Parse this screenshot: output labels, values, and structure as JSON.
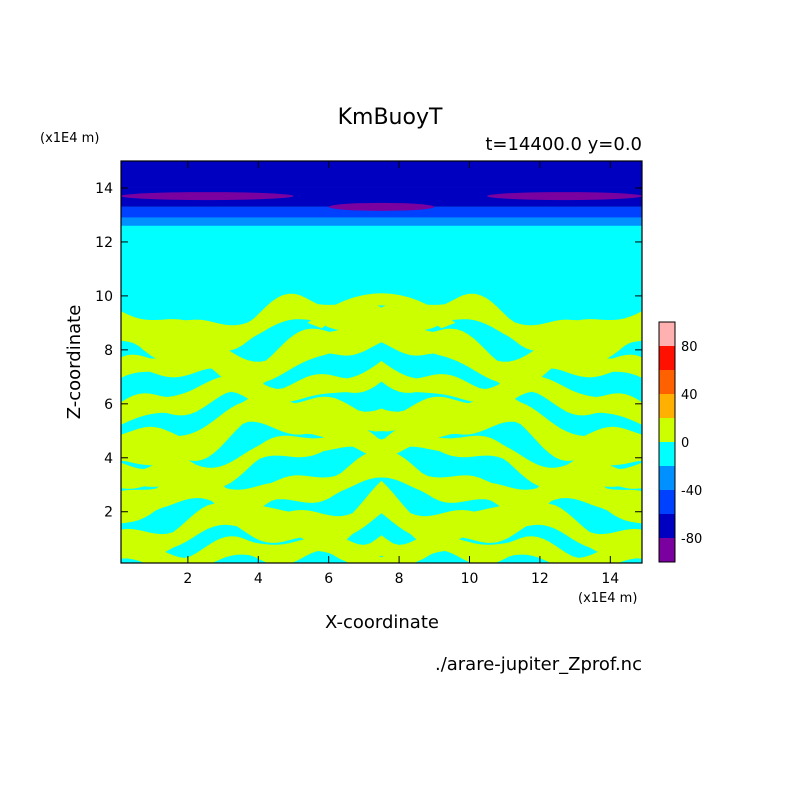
{
  "chart_data": {
    "type": "heatmap",
    "title": "KmBuoyT",
    "subtitle": "t=14400.0 y=0.0",
    "xlabel": "X-coordinate",
    "ylabel": "Z-coordinate",
    "x_unit": "(x1E4 m)",
    "y_unit": "(x1E4 m)",
    "xlim": [
      0.1,
      14.9
    ],
    "ylim": [
      0.1,
      15.0
    ],
    "x_ticks": [
      2,
      4,
      6,
      8,
      10,
      12,
      14
    ],
    "y_ticks": [
      2,
      4,
      6,
      8,
      10,
      12,
      14
    ],
    "source_file": "./arare-jupiter_Zprof.nc",
    "colorbar": {
      "levels": [
        -100,
        -80,
        -60,
        -40,
        -20,
        0,
        20,
        40,
        60,
        80,
        100
      ],
      "tick_labels": [
        "80",
        "40",
        "0",
        "-40",
        "-80"
      ],
      "tick_values": [
        80,
        40,
        0,
        -40,
        -80
      ],
      "colors": [
        "#7a00a0",
        "#0000c0",
        "#0040ff",
        "#0090ff",
        "#00ffff",
        "#ccff00",
        "#ffb000",
        "#ff6000",
        "#ff1000",
        "#ffb0b0"
      ]
    },
    "top_bands": [
      {
        "z0": 14.0,
        "z1": 15.0,
        "class": 1
      },
      {
        "z0": 13.3,
        "z1": 14.0,
        "class": 1
      },
      {
        "z0": 12.9,
        "z1": 13.3,
        "class": 2
      },
      {
        "z0": 12.6,
        "z1": 12.9,
        "class": 3
      }
    ],
    "purple_streaks": [
      {
        "x0": 0.1,
        "x1": 5.0,
        "z": 13.7
      },
      {
        "x0": 6.0,
        "x1": 9.0,
        "z": 13.3
      },
      {
        "x0": 10.5,
        "x1": 14.9,
        "z": 13.7
      }
    ],
    "background_class": 4,
    "positive_layers": [
      {
        "z": 9.0,
        "amp": 0.5,
        "thick": 0.45
      },
      {
        "z": 8.0,
        "amp": 0.7,
        "thick": 0.55
      },
      {
        "z": 7.0,
        "amp": 0.6,
        "thick": 0.35
      },
      {
        "z": 6.0,
        "amp": 0.5,
        "thick": 0.4
      },
      {
        "z": 5.0,
        "amp": 0.7,
        "thick": 0.55
      },
      {
        "z": 4.1,
        "amp": 0.6,
        "thick": 0.35
      },
      {
        "z": 3.0,
        "amp": 0.5,
        "thick": 0.45
      },
      {
        "z": 2.1,
        "amp": 0.8,
        "thick": 0.55
      },
      {
        "z": 1.2,
        "amp": 0.5,
        "thick": 0.4
      },
      {
        "z": 0.45,
        "amp": 0.2,
        "thick": 0.35
      }
    ]
  }
}
